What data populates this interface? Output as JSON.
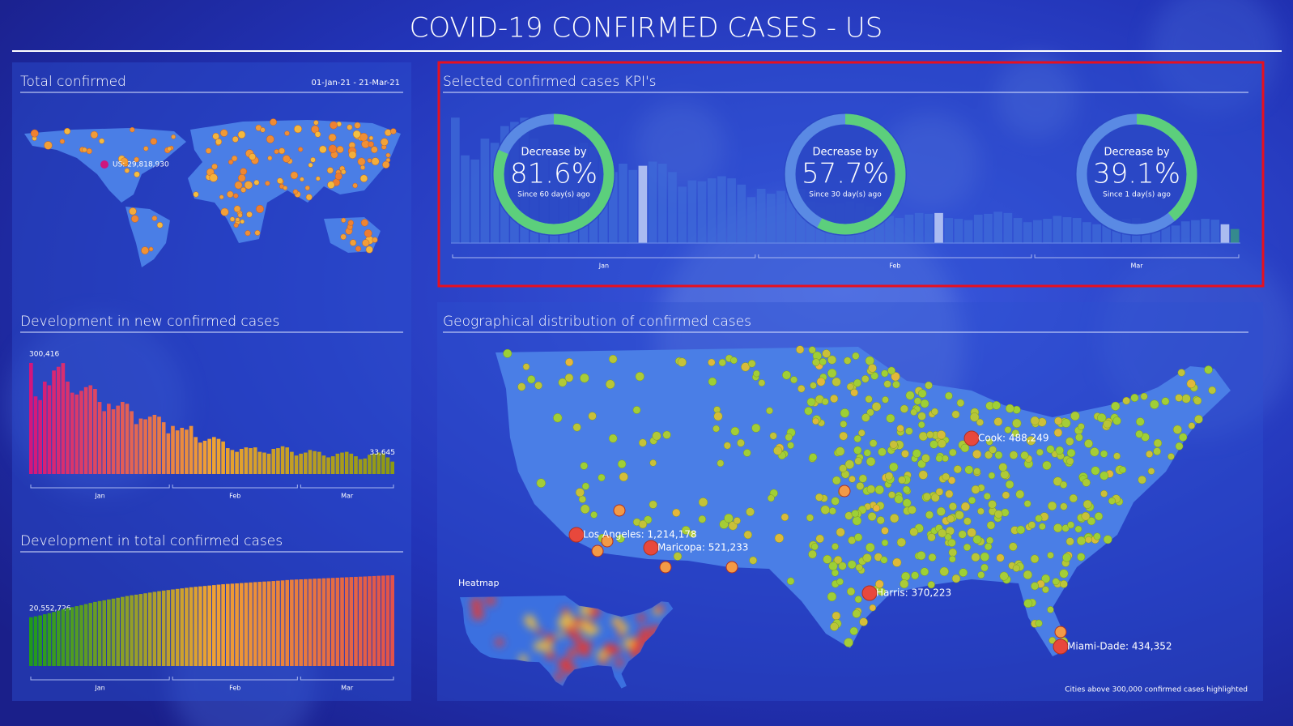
{
  "header": {
    "title": "COVID-19 CONFIRMED CASES - US"
  },
  "total_confirmed": {
    "title": "Total confirmed",
    "date_range": "01-Jan-21 - 21-Mar-21",
    "us_label": "US: 29,818,930"
  },
  "kpi_panel": {
    "title": "Selected confirmed cases KPI's",
    "kpis": [
      {
        "heading": "Decrease by",
        "value": 81.6,
        "value_label": "81.6%",
        "note": "Since 60 day(s) ago"
      },
      {
        "heading": "Decrease by",
        "value": 57.7,
        "value_label": "57.7%",
        "note": "Since 30 day(s) ago"
      },
      {
        "heading": "Decrease by",
        "value": 39.1,
        "value_label": "39.1%",
        "note": "Since 1 day(s) ago"
      }
    ],
    "month_labels": [
      "Jan",
      "Feb",
      "Mar"
    ]
  },
  "geo_panel": {
    "title": "Geographical distribution of confirmed cases",
    "city_labels": [
      "Cook: 488,249",
      "Los Angeles: 1,214,178",
      "Maricopa: 521,233",
      "Harris: 370,223",
      "Miami-Dade: 434,352"
    ],
    "heatmap_label": "Heatmap",
    "footnote": "Cities above 300,000 confirmed cases highlighted"
  },
  "chart_data": [
    {
      "type": "bar",
      "title": "Development in new confirmed cases",
      "month_labels": [
        "Jan",
        "Feb",
        "Mar"
      ],
      "values": [
        300416,
        210000,
        200000,
        250000,
        240000,
        280000,
        290000,
        300000,
        250000,
        220000,
        215000,
        225000,
        235000,
        240000,
        230000,
        195000,
        170000,
        190000,
        175000,
        185000,
        195000,
        190000,
        170000,
        135000,
        150000,
        148000,
        155000,
        160000,
        155000,
        140000,
        110000,
        130000,
        118000,
        125000,
        120000,
        130000,
        100000,
        85000,
        90000,
        95000,
        100000,
        95000,
        88000,
        70000,
        65000,
        60000,
        68000,
        72000,
        70000,
        72000,
        60000,
        58000,
        55000,
        68000,
        70000,
        75000,
        72000,
        60000,
        50000,
        55000,
        58000,
        65000,
        62000,
        60000,
        50000,
        45000,
        48000,
        55000,
        58000,
        60000,
        55000,
        48000,
        40000,
        42000,
        52000,
        55000,
        58000,
        56000,
        45000,
        33645
      ],
      "value_labels": [
        "300,416",
        null,
        null,
        null,
        null,
        null,
        null,
        null,
        null,
        null,
        null,
        null,
        null,
        null,
        null,
        null,
        null,
        null,
        null,
        null,
        null,
        null,
        null,
        null,
        null,
        null,
        null,
        null,
        null,
        null,
        null,
        null,
        null,
        null,
        null,
        null,
        null,
        null,
        null,
        null,
        null,
        null,
        null,
        null,
        null,
        null,
        null,
        null,
        null,
        null,
        null,
        null,
        null,
        null,
        null,
        null,
        null,
        null,
        null,
        null,
        null,
        null,
        null,
        null,
        null,
        null,
        null,
        null,
        null,
        null,
        null,
        null,
        null,
        null,
        null,
        null,
        null,
        null,
        null,
        "33,645"
      ],
      "colors": [
        "#d4157c",
        "#f0a232",
        "#8c9a12"
      ],
      "ylim": [
        0,
        320000
      ]
    },
    {
      "type": "bar",
      "title": "Development in total confirmed cases",
      "month_labels": [
        "Jan",
        "Feb",
        "Mar"
      ],
      "values": [
        20552726,
        20760000,
        20960000,
        21210000,
        21450000,
        21730000,
        22020000,
        22320000,
        22570000,
        22790000,
        23010000,
        23230000,
        23470000,
        23710000,
        23940000,
        24130000,
        24300000,
        24490000,
        24670000,
        24850000,
        25050000,
        25240000,
        25410000,
        25540000,
        25690000,
        25840000,
        26000000,
        26160000,
        26310000,
        26450000,
        26560000,
        26690000,
        26810000,
        26930000,
        27050000,
        27180000,
        27280000,
        27370000,
        27460000,
        27550000,
        27650000,
        27750000,
        27840000,
        27910000,
        27970000,
        28030000,
        28100000,
        28170000,
        28240000,
        28310000,
        28370000,
        28430000,
        28480000,
        28550000,
        28620000,
        28690000,
        28770000,
        28830000,
        28880000,
        28920000,
        28960000,
        29010000,
        29060000,
        29100000,
        29150000,
        29190000,
        29230000,
        29280000,
        29330000,
        29380000,
        29430000,
        29470000,
        29510000,
        29550000,
        29600000,
        29650000,
        29700000,
        29740000,
        29780000,
        29820000
      ],
      "value_labels": [
        "20,552,726",
        null,
        null,
        null,
        null,
        null,
        null,
        null,
        null,
        null,
        null,
        null,
        null,
        null,
        null,
        null,
        null,
        null,
        null,
        null,
        null,
        null,
        null,
        null,
        null,
        null,
        null,
        null,
        null,
        null,
        null,
        null,
        null,
        null,
        null,
        null,
        null,
        null,
        null,
        null,
        null,
        null,
        null,
        null,
        null,
        null,
        null,
        null,
        null,
        null,
        null,
        null,
        null,
        null,
        null,
        null,
        null,
        null,
        null,
        null,
        null,
        null,
        null,
        null,
        null,
        null,
        null,
        null,
        null,
        null,
        null,
        null,
        null,
        null,
        null,
        null,
        null,
        null,
        null,
        null
      ],
      "colors": [
        "#1f9a1c",
        "#f0a232",
        "#e2524a"
      ],
      "ylim": [
        9800000,
        31600000
      ]
    }
  ]
}
